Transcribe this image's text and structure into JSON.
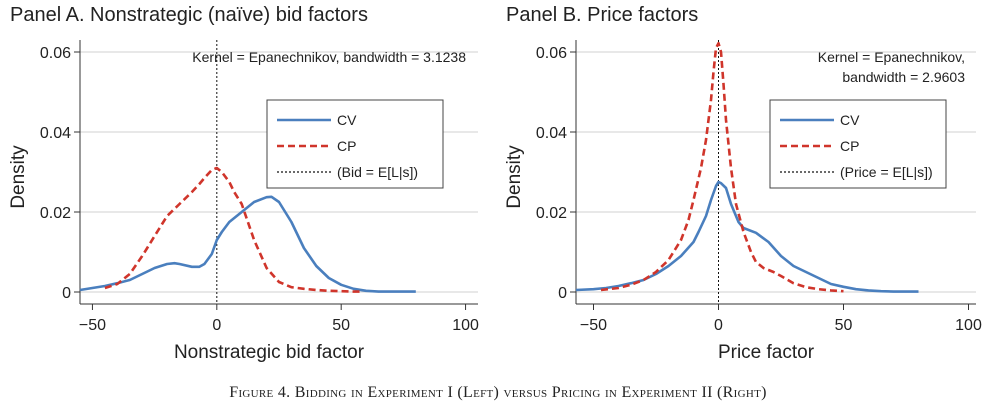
{
  "caption": "Figure 4. Bidding in Experiment I (Left) versus Pricing in Experiment II (Right)",
  "colors": {
    "cv": "#4a7fbe",
    "cp": "#d0352b",
    "grid": "#d0d0d0",
    "axis": "#333333"
  },
  "chart_data": [
    {
      "type": "line",
      "title": "Panel A. Nonstrategic (naïve) bid factors",
      "xlabel": "Nonstrategic bid factor",
      "ylabel": "Density",
      "xlim": [
        -55,
        105
      ],
      "ylim": [
        -0.003,
        0.063
      ],
      "xticks": [
        -50,
        0,
        50,
        100
      ],
      "xtick_labels": [
        "−50",
        "0",
        "50",
        "100"
      ],
      "yticks": [
        0,
        0.02,
        0.04,
        0.06
      ],
      "ytick_labels": [
        "0",
        "0.02",
        "0.04",
        "0.06"
      ],
      "grid": true,
      "annotation_lines": [
        "Kernel = Epanechnikov, bandwidth = 3.1238"
      ],
      "vline_x": 0,
      "legend": {
        "position": "upper-right",
        "entries": [
          "CV",
          "CP",
          "(Bid = E[L|s])"
        ]
      },
      "series": [
        {
          "name": "CV",
          "style": "solid",
          "color": "#4a7fbe",
          "x": [
            -55,
            -50,
            -45,
            -40,
            -35,
            -30,
            -25,
            -20,
            -17,
            -15,
            -10,
            -7,
            -5,
            -2,
            0,
            2,
            5,
            10,
            15,
            20,
            22,
            25,
            30,
            35,
            40,
            45,
            50,
            55,
            60,
            65,
            70,
            75,
            80
          ],
          "y": [
            0.0005,
            0.001,
            0.0015,
            0.0022,
            0.003,
            0.0045,
            0.006,
            0.007,
            0.0072,
            0.007,
            0.0063,
            0.0063,
            0.007,
            0.0095,
            0.013,
            0.015,
            0.0175,
            0.02,
            0.0225,
            0.0237,
            0.0238,
            0.0225,
            0.0175,
            0.011,
            0.0065,
            0.0035,
            0.0018,
            0.0008,
            0.0003,
            0.0001,
            0.0001,
            0.0001,
            0.0001
          ]
        },
        {
          "name": "CP",
          "style": "dashed",
          "color": "#d0352b",
          "x": [
            -45,
            -40,
            -35,
            -30,
            -28,
            -25,
            -22,
            -20,
            -15,
            -10,
            -7,
            -5,
            -2,
            0,
            2,
            5,
            7,
            10,
            15,
            20,
            25,
            30,
            35,
            40,
            45,
            50,
            55,
            58
          ],
          "y": [
            0.001,
            0.002,
            0.0045,
            0.009,
            0.011,
            0.014,
            0.017,
            0.019,
            0.022,
            0.025,
            0.027,
            0.0285,
            0.0305,
            0.031,
            0.03,
            0.0275,
            0.025,
            0.022,
            0.013,
            0.006,
            0.0025,
            0.0012,
            0.0008,
            0.0005,
            0.0003,
            0.0002,
            0.0001,
            0.0001
          ]
        }
      ]
    },
    {
      "type": "line",
      "title": "Panel B. Price factors",
      "xlabel": "Price factor",
      "ylabel": "Density",
      "xlim": [
        -57,
        103
      ],
      "ylim": [
        -0.003,
        0.063
      ],
      "xticks": [
        -50,
        0,
        50,
        100
      ],
      "xtick_labels": [
        "−50",
        "0",
        "50",
        "100"
      ],
      "yticks": [
        0,
        0.02,
        0.04,
        0.06
      ],
      "ytick_labels": [
        "0",
        "0.02",
        "0.04",
        "0.06"
      ],
      "grid": true,
      "annotation_lines": [
        "Kernel = Epanechnikov,",
        "bandwidth = 2.9603"
      ],
      "vline_x": 0,
      "legend": {
        "position": "upper-right",
        "entries": [
          "CV",
          "CP",
          "(Price = E[L|s])"
        ]
      },
      "series": [
        {
          "name": "CV",
          "style": "solid",
          "color": "#4a7fbe",
          "x": [
            -57,
            -50,
            -45,
            -40,
            -35,
            -30,
            -25,
            -20,
            -15,
            -10,
            -8,
            -5,
            -3,
            -1,
            0,
            1,
            3,
            5,
            8,
            10,
            15,
            20,
            25,
            30,
            35,
            40,
            45,
            50,
            55,
            60,
            65,
            70,
            75,
            80
          ],
          "y": [
            0.0005,
            0.0007,
            0.001,
            0.0015,
            0.0022,
            0.003,
            0.0045,
            0.0065,
            0.009,
            0.0125,
            0.015,
            0.019,
            0.023,
            0.0265,
            0.0275,
            0.0272,
            0.026,
            0.022,
            0.0175,
            0.016,
            0.0148,
            0.0125,
            0.009,
            0.0065,
            0.005,
            0.0035,
            0.002,
            0.0013,
            0.0007,
            0.0004,
            0.0002,
            0.0001,
            0.0001,
            0.0001
          ]
        },
        {
          "name": "CP",
          "style": "dashed",
          "color": "#d0352b",
          "x": [
            -47,
            -40,
            -35,
            -30,
            -25,
            -20,
            -15,
            -12,
            -10,
            -7,
            -5,
            -3,
            -2,
            -1,
            0,
            1,
            2,
            3,
            5,
            7,
            10,
            13,
            15,
            18,
            20,
            22,
            25,
            30,
            35,
            40,
            45,
            50
          ],
          "y": [
            0.0005,
            0.001,
            0.0018,
            0.003,
            0.005,
            0.008,
            0.013,
            0.018,
            0.023,
            0.031,
            0.038,
            0.048,
            0.055,
            0.061,
            0.0622,
            0.06,
            0.052,
            0.043,
            0.031,
            0.022,
            0.015,
            0.01,
            0.0075,
            0.006,
            0.0055,
            0.005,
            0.004,
            0.0022,
            0.0012,
            0.0007,
            0.0004,
            0.0002
          ]
        }
      ]
    }
  ]
}
